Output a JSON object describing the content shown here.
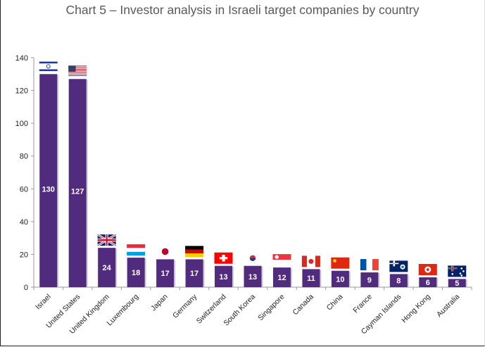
{
  "chart_data": {
    "type": "bar",
    "title": "Chart 5 – Investor analysis in Israeli target companies by country",
    "xlabel": "",
    "ylabel": "",
    "ylim": [
      0,
      140
    ],
    "yticks": [
      0,
      20,
      40,
      60,
      80,
      100,
      120,
      140
    ],
    "grid": false,
    "legend": "none",
    "bar_color": "#512C7E",
    "categories": [
      "Israel",
      "United States",
      "United Kingdom",
      "Luxembourg",
      "Japan",
      "Germany",
      "Switzerland",
      "South Korea",
      "Singapore",
      "Canada",
      "China",
      "France",
      "Cayman Islands",
      "Hong Kong",
      "Australia"
    ],
    "values": [
      130,
      127,
      24,
      18,
      17,
      17,
      13,
      13,
      12,
      11,
      10,
      9,
      8,
      6,
      5
    ],
    "data_labels": [
      "130",
      "127",
      "24",
      "18",
      "17",
      "17",
      "13",
      "13",
      "12",
      "11",
      "10",
      "9",
      "8",
      "6",
      "5"
    ],
    "flag_icons": [
      "israel-flag-icon",
      "usa-flag-icon",
      "uk-flag-icon",
      "luxembourg-flag-icon",
      "japan-flag-icon",
      "germany-flag-icon",
      "switzerland-flag-icon",
      "south-korea-flag-icon",
      "singapore-flag-icon",
      "canada-flag-icon",
      "china-flag-icon",
      "france-flag-icon",
      "cayman-islands-flag-icon",
      "hong-kong-flag-icon",
      "australia-flag-icon"
    ]
  }
}
